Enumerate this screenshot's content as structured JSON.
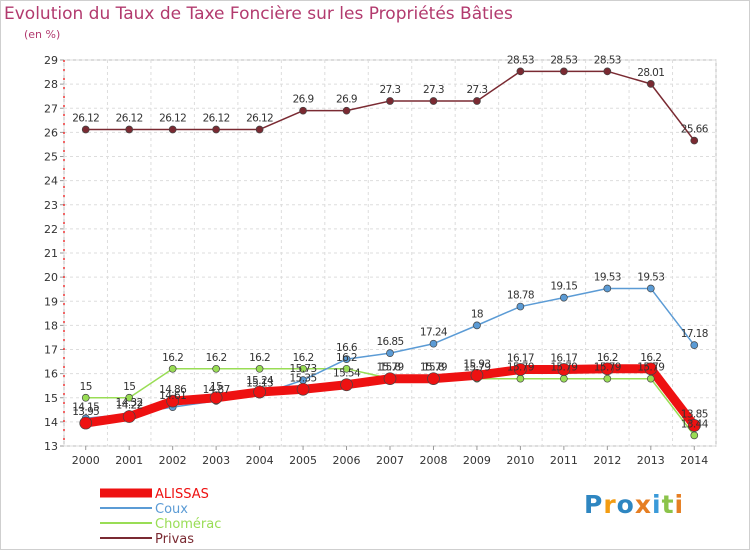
{
  "chart_data": {
    "type": "line",
    "title": "Evolution du Taux de Taxe Foncière sur les Propriétés Bâties",
    "subtitle": "(en %)",
    "xlabel": "",
    "ylabel": "",
    "ylim": [
      13,
      29
    ],
    "yticks": [
      13,
      14,
      15,
      16,
      17,
      18,
      19,
      20,
      21,
      22,
      23,
      24,
      25,
      26,
      27,
      28,
      29
    ],
    "grid": true,
    "legend": "bottom-left",
    "x": [
      "2000",
      "2001",
      "2002",
      "2003",
      "2004",
      "2005",
      "2006",
      "2007",
      "2008",
      "2009",
      "2010",
      "2011",
      "2012",
      "2013",
      "2014"
    ],
    "series": [
      {
        "name": "ALISSAS",
        "color": "#ee1111",
        "values": [
          13.95,
          14.22,
          14.86,
          15.0,
          15.24,
          15.35,
          15.54,
          15.79,
          15.79,
          15.93,
          16.17,
          16.17,
          16.2,
          16.2,
          13.85
        ],
        "labels": [
          "13.95",
          "14.22",
          "14.86",
          "15",
          "15.24",
          "15.35",
          "15.54",
          "15.79",
          "15.79",
          "15.93",
          "16.17",
          "16.17",
          "16.2",
          "16.2",
          "13.85"
        ]
      },
      {
        "name": "Coux",
        "color": "#5b9bd5",
        "values": [
          14.15,
          14.32,
          14.61,
          14.87,
          15.13,
          15.73,
          16.6,
          16.85,
          17.24,
          18.0,
          18.78,
          19.15,
          19.53,
          19.53,
          17.18
        ],
        "labels": [
          "14.15",
          "14.32",
          "14.61",
          "14.87",
          "15.13",
          "15.73",
          "16.6",
          "16.85",
          "17.24",
          "18",
          "18.78",
          "19.15",
          "19.53",
          "19.53",
          "17.18"
        ]
      },
      {
        "name": "Chomérac",
        "color": "#99dd55",
        "values": [
          15.0,
          15.0,
          16.2,
          16.2,
          16.2,
          16.2,
          16.2,
          15.8,
          15.8,
          15.79,
          15.79,
          15.79,
          15.79,
          15.79,
          13.44
        ],
        "labels": [
          "15",
          "15",
          "16.2",
          "16.2",
          "16.2",
          "16.2",
          "16.2",
          "15.8",
          "15.8",
          "15.79",
          "15.79",
          "15.79",
          "15.79",
          "15.79",
          "13.44"
        ]
      },
      {
        "name": "Privas",
        "color": "#7a2a32",
        "values": [
          26.12,
          26.12,
          26.12,
          26.12,
          26.12,
          26.9,
          26.9,
          27.3,
          27.3,
          27.3,
          28.53,
          28.53,
          28.53,
          28.01,
          25.66
        ],
        "labels": [
          "26.12",
          "26.12",
          "26.12",
          "26.12",
          "26.12",
          "26.9",
          "26.9",
          "27.3",
          "27.3",
          "27.3",
          "28.53",
          "28.53",
          "28.53",
          "28.01",
          "25.66"
        ]
      }
    ]
  },
  "logo": {
    "letters": [
      "P",
      "r",
      "o",
      "x",
      "i",
      "t",
      "i"
    ],
    "colors": [
      "#2e86c1",
      "#f39c12",
      "#2e86c1",
      "#e67e22",
      "#3a9ad9",
      "#8bc34a",
      "#e67e22"
    ]
  }
}
